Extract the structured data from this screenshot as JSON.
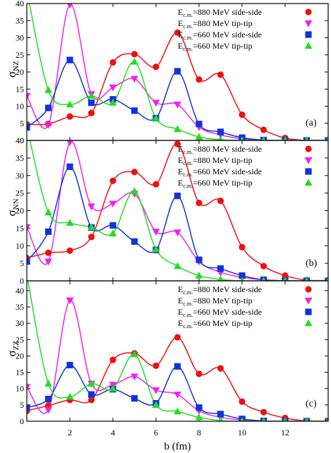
{
  "chart_data": [
    {
      "type": "line",
      "ylabel": "σ",
      "ylabel_sub": "NZ",
      "panel_label": "(a)",
      "ylim": [
        0,
        40
      ],
      "yticks": [
        0,
        5,
        10,
        15,
        20,
        25,
        30,
        35,
        40
      ],
      "x": [
        0,
        1,
        2,
        3,
        4,
        5,
        6,
        7,
        8,
        9,
        10,
        11,
        12,
        13,
        14
      ],
      "series": [
        {
          "label_pre": "E",
          "label_sub": "c.m.",
          "label_post": "=880 MeV side-side",
          "color": "#ee1111",
          "marker": "circle",
          "values": [
            4.7,
            4.8,
            7.0,
            8.0,
            22.8,
            25.2,
            21.5,
            31.5,
            17.8,
            19.2,
            7.5,
            3.1,
            0.7,
            0.0,
            0.0
          ]
        },
        {
          "label_pre": "E",
          "label_sub": "c.m.",
          "label_post": "=880 MeV      tip-tip",
          "color": "#ee22ee",
          "marker": "triangle-down",
          "values": [
            13.0,
            4.5,
            39.7,
            13.5,
            15.5,
            18.0,
            11.0,
            10.5,
            3.9,
            1.6,
            0.5,
            0.1,
            0.0,
            0.0,
            0.0
          ]
        },
        {
          "label_pre": "E",
          "label_sub": "c.m.",
          "label_post": "=660 MeV side-side",
          "color": "#1133dd",
          "marker": "square",
          "values": [
            3.8,
            9.5,
            23.5,
            11.0,
            12.0,
            8.7,
            6.5,
            20.2,
            4.8,
            2.5,
            0.8,
            0.1,
            0.0,
            0.0,
            0.0
          ]
        },
        {
          "label_pre": "E",
          "label_sub": "c.m.",
          "label_post": "=660 MeV      tip-tip",
          "color": "#22dd22",
          "marker": "triangle-up",
          "values": [
            44.0,
            14.7,
            10.5,
            13.0,
            11.0,
            23.0,
            6.5,
            3.3,
            1.0,
            0.2,
            0.0,
            0.0,
            0.0,
            0.0,
            0.0
          ]
        }
      ]
    },
    {
      "type": "line",
      "ylabel": "σ",
      "ylabel_sub": "NN",
      "panel_label": "(b)",
      "ylim": [
        0,
        40
      ],
      "yticks": [
        0,
        5,
        10,
        15,
        20,
        25,
        30,
        35,
        40
      ],
      "x": [
        0,
        1,
        2,
        3,
        4,
        5,
        6,
        7,
        8,
        9,
        10,
        11,
        12,
        13,
        14
      ],
      "series": [
        {
          "label_pre": "E",
          "label_sub": "c.m.",
          "label_post": "=880 MeV side-side",
          "color": "#ee1111",
          "marker": "circle",
          "values": [
            6.5,
            8.0,
            8.6,
            12.5,
            28.5,
            31.0,
            27.5,
            39.0,
            22.2,
            22.8,
            9.6,
            4.2,
            1.5,
            0.2,
            0.1
          ]
        },
        {
          "label_pre": "E",
          "label_sub": "c.m.",
          "label_post": "=880 MeV      tip-tip",
          "color": "#ee22ee",
          "marker": "triangle-down",
          "values": [
            15.3,
            5.5,
            39.5,
            21.2,
            22.0,
            24.8,
            14.0,
            13.8,
            5.5,
            2.4,
            1.0,
            0.3,
            0.0,
            0.0,
            0.0
          ]
        },
        {
          "label_pre": "E",
          "label_sub": "c.m.",
          "label_post": "=660 MeV side-side",
          "color": "#1133dd",
          "marker": "square",
          "values": [
            5.5,
            14.0,
            32.5,
            15.2,
            15.8,
            11.2,
            8.8,
            24.2,
            6.0,
            3.5,
            1.5,
            0.3,
            0.0,
            0.0,
            0.0
          ]
        },
        {
          "label_pre": "E",
          "label_sub": "c.m.",
          "label_post": "=660 MeV      tip-tip",
          "color": "#22dd22",
          "marker": "triangle-up",
          "values": [
            44.0,
            19.5,
            16.5,
            15.3,
            13.5,
            25.5,
            9.0,
            4.2,
            1.5,
            0.4,
            0.0,
            0.0,
            0.0,
            0.0,
            0.0
          ]
        }
      ]
    },
    {
      "type": "line",
      "ylabel": "σ",
      "ylabel_sub": "ZZ",
      "panel_label": "(c)",
      "ylim": [
        0,
        43
      ],
      "yticks": [
        0,
        5,
        10,
        15,
        20,
        25,
        30,
        35,
        40
      ],
      "xlabel": "b (fm)",
      "xticks": [
        2,
        4,
        6,
        8,
        10,
        12
      ],
      "x": [
        0,
        1,
        2,
        3,
        4,
        5,
        6,
        7,
        8,
        9,
        10,
        11,
        12,
        13,
        14
      ],
      "series": [
        {
          "label_pre": "E",
          "label_sub": "c.m.",
          "label_post": "=880 MeV side-side",
          "color": "#ee1111",
          "marker": "circle",
          "values": [
            3.2,
            4.8,
            6.5,
            6.5,
            18.8,
            20.8,
            17.0,
            25.7,
            14.5,
            16.2,
            6.0,
            2.8,
            1.0,
            0.1,
            0.0
          ]
        },
        {
          "label_pre": "E",
          "label_sub": "c.m.",
          "label_post": "=880 MeV      tip-tip",
          "color": "#ee22ee",
          "marker": "triangle-down",
          "values": [
            10.5,
            3.5,
            37.0,
            11.5,
            11.2,
            13.7,
            9.5,
            8.2,
            3.2,
            1.2,
            0.4,
            0.1,
            0.0,
            0.0,
            0.0
          ]
        },
        {
          "label_pre": "E",
          "label_sub": "c.m.",
          "label_post": "=660 MeV side-side",
          "color": "#1133dd",
          "marker": "square",
          "values": [
            4.2,
            6.8,
            17.2,
            8.2,
            9.8,
            7.0,
            5.5,
            16.8,
            4.2,
            2.2,
            0.7,
            0.1,
            0.0,
            0.0,
            0.0
          ]
        },
        {
          "label_pre": "E",
          "label_sub": "c.m.",
          "label_post": "=660 MeV      tip-tip",
          "color": "#22dd22",
          "marker": "triangle-up",
          "values": [
            45.0,
            11.5,
            7.5,
            11.5,
            10.0,
            20.5,
            5.0,
            3.0,
            1.2,
            0.2,
            0.0,
            0.0,
            0.0,
            0.0,
            0.0
          ]
        }
      ]
    }
  ]
}
